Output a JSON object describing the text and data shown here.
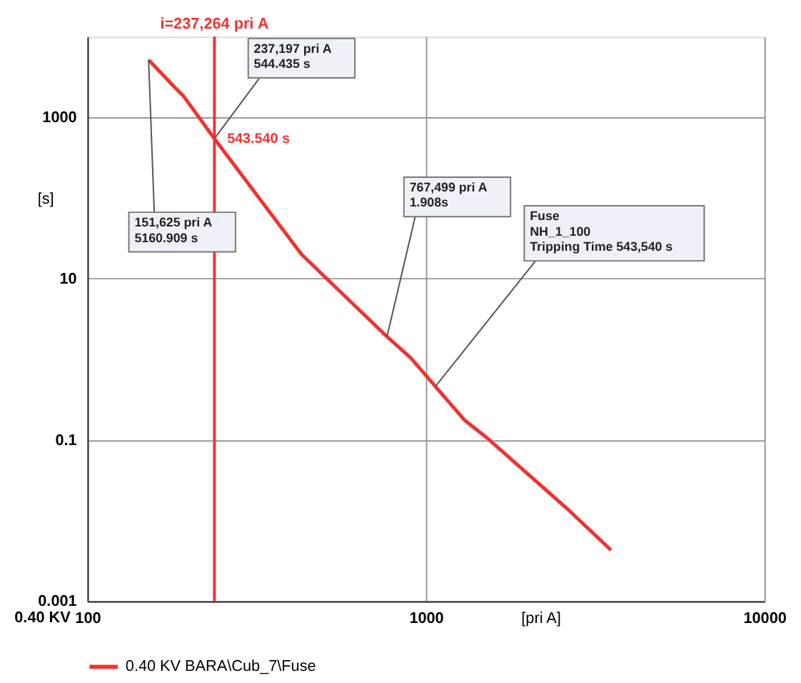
{
  "chart_data": {
    "type": "line",
    "xlabel": "[pri A]",
    "ylabel": "[s]",
    "x": [
      151.625,
      180,
      192,
      237.197,
      429,
      767.499,
      902,
      1067,
      1297,
      1507,
      2612,
      3524
    ],
    "series": [
      {
        "name": "0.40 KV BARA\\Cub_7\\Fuse",
        "color": "#ee3333",
        "values": [
          5160.909,
          2417,
          1848,
          544.435,
          20,
          1.908,
          1.04,
          0.46,
          0.178,
          0.108,
          0.0141,
          0.0043
        ]
      }
    ],
    "log": "xy",
    "xlim": [
      100,
      10000
    ],
    "ylim": [
      0.001,
      10000
    ],
    "xticks": [
      100,
      1000,
      10000
    ],
    "yticks": [
      0.001,
      0.1,
      10,
      1000
    ],
    "grid": true,
    "legend": "bottom",
    "marker": "none",
    "line_style": "solid",
    "ref_lines": [
      {
        "axis": "x",
        "value": 237.264,
        "label": "i=237,264 pri A",
        "color": "#ee3333",
        "line_style": "solid"
      }
    ],
    "annotations": [
      {
        "text": "151,625 pri A\n5160.909 s",
        "x": 151.625,
        "y": 5160.909
      },
      {
        "text": "237,197 pri A\n544.435 s",
        "x": 237.197,
        "y": 544.435
      },
      {
        "text": "767,499 pri A\n1.908s",
        "x": 767.499,
        "y": 1.908
      },
      {
        "text": "Fuse\nNH_1_100\nTripping Time 543,540 s",
        "x": 1067,
        "y": 0.46
      },
      {
        "text": "543.540 s",
        "x": 237.264,
        "y": 543.54
      },
      "0.40 KV"
    ]
  }
}
